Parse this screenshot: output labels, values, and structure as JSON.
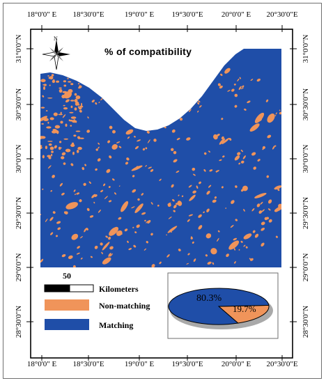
{
  "map": {
    "title": "% of compatibility",
    "north_label": "N",
    "colors": {
      "matching": "#1f4ea8",
      "non_matching": "#f0945a",
      "frame": "#000000"
    },
    "top_ticks": [
      "18°0'0\" E",
      "18°30'0\"E",
      "19°0'0\" E",
      "19°30'0\"E",
      "20°0'0\" E",
      "20°30'0\"E"
    ],
    "bottom_ticks": [
      "18°0'0\" E",
      "18°30'0\"E",
      "19°0'0\" E",
      "19°30'0\"E",
      "20°0'0\" E",
      "20°30'0\"E"
    ],
    "left_ticks": [
      "31°0'0\"N",
      "30°30'0\"N",
      "30°0'0\"N",
      "29°30'0\"N",
      "29°0'0\"N",
      "28°30'0\"N"
    ],
    "right_ticks": [
      "31°0'0\"N",
      "30°30'0\"N",
      "30°0'0\"N",
      "29°30'0\"N",
      "29°0'0\"N",
      "28°30'0\"N"
    ]
  },
  "legend": {
    "scale_number": "50",
    "scale_unit": "Kilometers",
    "items": [
      {
        "label": "Non-matching",
        "color": "#f0945a"
      },
      {
        "label": "Matching",
        "color": "#1f4ea8"
      }
    ]
  },
  "pie": {
    "slices": [
      {
        "label": "80.3%",
        "value": 80.3,
        "color": "#1f4ea8"
      },
      {
        "label": "19.7%",
        "value": 19.7,
        "color": "#f0945a"
      }
    ]
  }
}
